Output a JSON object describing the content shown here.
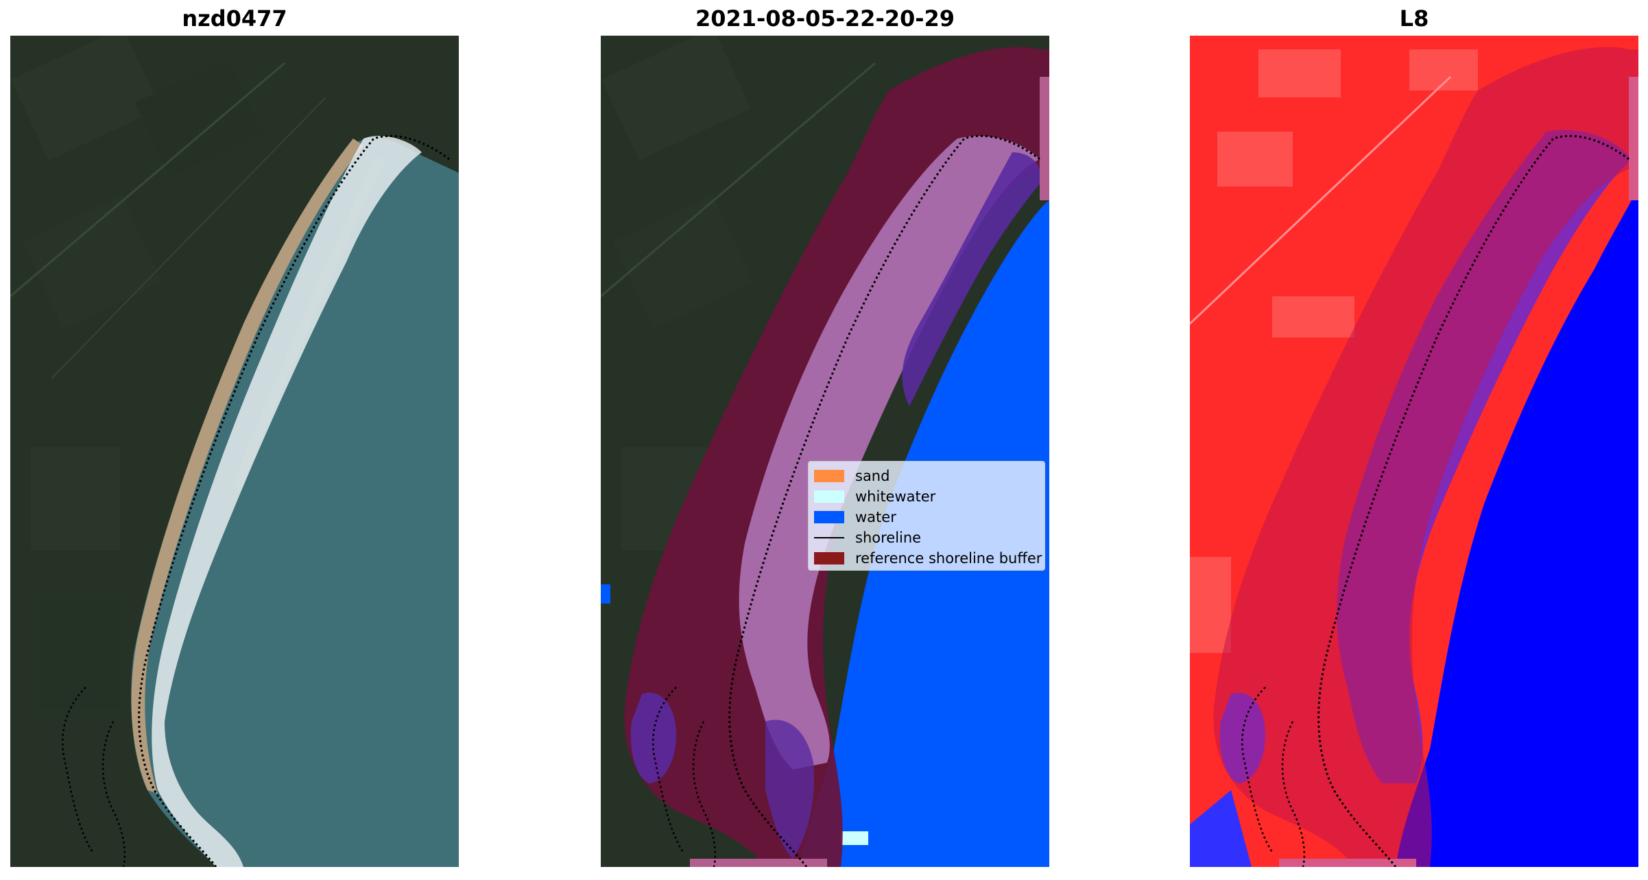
{
  "panels": [
    {
      "title": "nzd0477",
      "kind": "rgb"
    },
    {
      "title": "2021-08-05-22-20-29",
      "kind": "classification"
    },
    {
      "title": "L8",
      "kind": "index"
    }
  ],
  "legend": {
    "items": [
      {
        "label": "sand",
        "color": "#ff8c40",
        "type": "patch"
      },
      {
        "label": "whitewater",
        "color": "#ccffff",
        "type": "patch"
      },
      {
        "label": "water",
        "color": "#0059ff",
        "type": "patch"
      },
      {
        "label": "shoreline",
        "color": "#000000",
        "type": "line"
      },
      {
        "label": "reference shoreline buffer",
        "color": "#8b1a1a",
        "type": "patch"
      }
    ]
  },
  "colors": {
    "land": "#263226",
    "sea": "#3f6f77",
    "beach_sand": "#b39b7d",
    "surf": "#e8eef0",
    "class_water": "#0059ff",
    "buffer": "#6a1238",
    "buffer_land": "#6d1a45",
    "class_whitewater_blend": "#a66aa8",
    "class_dark_blend": "#5a2aa0",
    "index_land": "#ff2a2a",
    "index_water": "#0000ff",
    "index_buffer": "#c3144a",
    "index_purple": "#6a2ad0"
  }
}
